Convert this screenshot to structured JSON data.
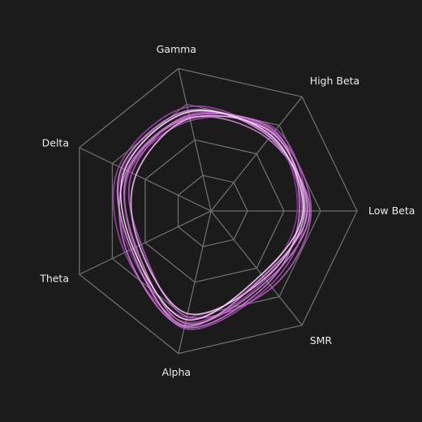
{
  "chart_data": {
    "type": "radar",
    "title": "",
    "axes": [
      "Low Beta",
      "High Beta",
      "Gamma",
      "Delta",
      "Theta",
      "Alpha",
      "SMR"
    ],
    "rings": 4,
    "range": [
      0,
      4
    ],
    "grid": true,
    "series": [
      {
        "values": [
          2.52,
          2.64,
          2.78,
          2.62,
          2.36,
          3.05,
          2.22
        ],
        "color": "#f6d6f6",
        "opacity": 0.95
      },
      {
        "values": [
          2.56,
          2.72,
          2.6,
          2.28,
          2.18,
          2.88,
          2.36
        ],
        "color": "#ecb6ee",
        "opacity": 0.9
      },
      {
        "values": [
          2.64,
          2.58,
          2.82,
          2.72,
          2.42,
          3.22,
          2.3
        ],
        "color": "#e29ae6",
        "opacity": 0.85
      },
      {
        "values": [
          2.42,
          2.8,
          2.66,
          2.56,
          2.56,
          3.26,
          2.52
        ],
        "color": "#d07ad8",
        "opacity": 0.85
      },
      {
        "values": [
          2.74,
          2.76,
          2.7,
          2.4,
          2.12,
          2.96,
          2.68
        ],
        "color": "#c060cc",
        "opacity": 0.8
      },
      {
        "values": [
          2.48,
          2.6,
          2.92,
          2.8,
          2.62,
          3.12,
          2.4
        ],
        "color": "#a947b6",
        "opacity": 0.8
      },
      {
        "values": [
          2.6,
          2.86,
          2.54,
          2.48,
          2.32,
          3.3,
          2.6
        ],
        "color": "#b455c2",
        "opacity": 0.75
      },
      {
        "values": [
          2.36,
          2.68,
          2.76,
          2.66,
          2.48,
          3.0,
          2.28
        ],
        "color": "#9b3aa8",
        "opacity": 0.75
      },
      {
        "values": [
          2.7,
          2.52,
          2.62,
          2.52,
          2.28,
          3.16,
          2.46
        ],
        "color": "#dd8de2",
        "opacity": 0.8
      }
    ]
  }
}
